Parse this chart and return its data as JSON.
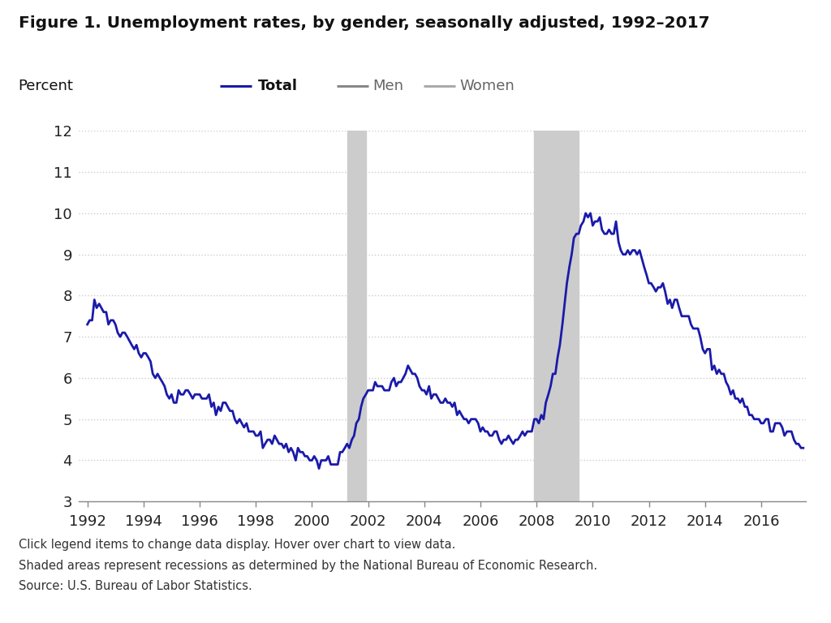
{
  "title": "Figure 1. Unemployment rates, by gender, seasonally adjusted, 1992–2017",
  "ylabel": "Percent",
  "legend_entries": [
    {
      "label": "Total",
      "color": "#1a1aaa",
      "lw": 2.0,
      "bold": true
    },
    {
      "label": "Men",
      "color": "#888888",
      "lw": 1.5,
      "bold": false
    },
    {
      "label": "Women",
      "color": "#aaaaaa",
      "lw": 1.5,
      "bold": false
    }
  ],
  "recession_bands": [
    {
      "start": 2001.25,
      "end": 2001.92
    },
    {
      "start": 2007.92,
      "end": 2009.5
    }
  ],
  "recession_color": "#cccccc",
  "ylim": [
    3,
    12
  ],
  "yticks": [
    3,
    4,
    5,
    6,
    7,
    8,
    9,
    10,
    11,
    12
  ],
  "xlim_start": 1991.7,
  "xlim_end": 2017.6,
  "xticks": [
    1992,
    1994,
    1996,
    1998,
    2000,
    2002,
    2004,
    2006,
    2008,
    2010,
    2012,
    2014,
    2016
  ],
  "footnote_lines": [
    "Click legend items to change data display. Hover over chart to view data.",
    "Shaded areas represent recessions as determined by the National Bureau of Economic Research.",
    "Source: U.S. Bureau of Labor Statistics."
  ],
  "background_color": "#ffffff",
  "grid_color": "#cccccc",
  "total_data": [
    [
      1992.0,
      7.3
    ],
    [
      1992.08,
      7.4
    ],
    [
      1992.17,
      7.4
    ],
    [
      1992.25,
      7.9
    ],
    [
      1992.33,
      7.7
    ],
    [
      1992.42,
      7.8
    ],
    [
      1992.5,
      7.7
    ],
    [
      1992.58,
      7.6
    ],
    [
      1992.67,
      7.6
    ],
    [
      1992.75,
      7.3
    ],
    [
      1992.83,
      7.4
    ],
    [
      1992.92,
      7.4
    ],
    [
      1993.0,
      7.3
    ],
    [
      1993.08,
      7.1
    ],
    [
      1993.17,
      7.0
    ],
    [
      1993.25,
      7.1
    ],
    [
      1993.33,
      7.1
    ],
    [
      1993.42,
      7.0
    ],
    [
      1993.5,
      6.9
    ],
    [
      1993.58,
      6.8
    ],
    [
      1993.67,
      6.7
    ],
    [
      1993.75,
      6.8
    ],
    [
      1993.83,
      6.6
    ],
    [
      1993.92,
      6.5
    ],
    [
      1994.0,
      6.6
    ],
    [
      1994.08,
      6.6
    ],
    [
      1994.17,
      6.5
    ],
    [
      1994.25,
      6.4
    ],
    [
      1994.33,
      6.1
    ],
    [
      1994.42,
      6.0
    ],
    [
      1994.5,
      6.1
    ],
    [
      1994.58,
      6.0
    ],
    [
      1994.67,
      5.9
    ],
    [
      1994.75,
      5.8
    ],
    [
      1994.83,
      5.6
    ],
    [
      1994.92,
      5.5
    ],
    [
      1995.0,
      5.6
    ],
    [
      1995.08,
      5.4
    ],
    [
      1995.17,
      5.4
    ],
    [
      1995.25,
      5.7
    ],
    [
      1995.33,
      5.6
    ],
    [
      1995.42,
      5.6
    ],
    [
      1995.5,
      5.7
    ],
    [
      1995.58,
      5.7
    ],
    [
      1995.67,
      5.6
    ],
    [
      1995.75,
      5.5
    ],
    [
      1995.83,
      5.6
    ],
    [
      1995.92,
      5.6
    ],
    [
      1996.0,
      5.6
    ],
    [
      1996.08,
      5.5
    ],
    [
      1996.17,
      5.5
    ],
    [
      1996.25,
      5.5
    ],
    [
      1996.33,
      5.6
    ],
    [
      1996.42,
      5.3
    ],
    [
      1996.5,
      5.4
    ],
    [
      1996.58,
      5.1
    ],
    [
      1996.67,
      5.3
    ],
    [
      1996.75,
      5.2
    ],
    [
      1996.83,
      5.4
    ],
    [
      1996.92,
      5.4
    ],
    [
      1997.0,
      5.3
    ],
    [
      1997.08,
      5.2
    ],
    [
      1997.17,
      5.2
    ],
    [
      1997.25,
      5.0
    ],
    [
      1997.33,
      4.9
    ],
    [
      1997.42,
      5.0
    ],
    [
      1997.5,
      4.9
    ],
    [
      1997.58,
      4.8
    ],
    [
      1997.67,
      4.9
    ],
    [
      1997.75,
      4.7
    ],
    [
      1997.83,
      4.7
    ],
    [
      1997.92,
      4.7
    ],
    [
      1998.0,
      4.6
    ],
    [
      1998.08,
      4.6
    ],
    [
      1998.17,
      4.7
    ],
    [
      1998.25,
      4.3
    ],
    [
      1998.33,
      4.4
    ],
    [
      1998.42,
      4.5
    ],
    [
      1998.5,
      4.5
    ],
    [
      1998.58,
      4.4
    ],
    [
      1998.67,
      4.6
    ],
    [
      1998.75,
      4.5
    ],
    [
      1998.83,
      4.4
    ],
    [
      1998.92,
      4.4
    ],
    [
      1999.0,
      4.3
    ],
    [
      1999.08,
      4.4
    ],
    [
      1999.17,
      4.2
    ],
    [
      1999.25,
      4.3
    ],
    [
      1999.33,
      4.2
    ],
    [
      1999.42,
      4.0
    ],
    [
      1999.5,
      4.3
    ],
    [
      1999.58,
      4.2
    ],
    [
      1999.67,
      4.2
    ],
    [
      1999.75,
      4.1
    ],
    [
      1999.83,
      4.1
    ],
    [
      1999.92,
      4.0
    ],
    [
      2000.0,
      4.0
    ],
    [
      2000.08,
      4.1
    ],
    [
      2000.17,
      4.0
    ],
    [
      2000.25,
      3.8
    ],
    [
      2000.33,
      4.0
    ],
    [
      2000.42,
      4.0
    ],
    [
      2000.5,
      4.0
    ],
    [
      2000.58,
      4.1
    ],
    [
      2000.67,
      3.9
    ],
    [
      2000.75,
      3.9
    ],
    [
      2000.83,
      3.9
    ],
    [
      2000.92,
      3.9
    ],
    [
      2001.0,
      4.2
    ],
    [
      2001.08,
      4.2
    ],
    [
      2001.17,
      4.3
    ],
    [
      2001.25,
      4.4
    ],
    [
      2001.33,
      4.3
    ],
    [
      2001.42,
      4.5
    ],
    [
      2001.5,
      4.6
    ],
    [
      2001.58,
      4.9
    ],
    [
      2001.67,
      5.0
    ],
    [
      2001.75,
      5.3
    ],
    [
      2001.83,
      5.5
    ],
    [
      2001.92,
      5.6
    ],
    [
      2002.0,
      5.7
    ],
    [
      2002.08,
      5.7
    ],
    [
      2002.17,
      5.7
    ],
    [
      2002.25,
      5.9
    ],
    [
      2002.33,
      5.8
    ],
    [
      2002.42,
      5.8
    ],
    [
      2002.5,
      5.8
    ],
    [
      2002.58,
      5.7
    ],
    [
      2002.67,
      5.7
    ],
    [
      2002.75,
      5.7
    ],
    [
      2002.83,
      5.9
    ],
    [
      2002.92,
      6.0
    ],
    [
      2003.0,
      5.8
    ],
    [
      2003.08,
      5.9
    ],
    [
      2003.17,
      5.9
    ],
    [
      2003.25,
      6.0
    ],
    [
      2003.33,
      6.1
    ],
    [
      2003.42,
      6.3
    ],
    [
      2003.5,
      6.2
    ],
    [
      2003.58,
      6.1
    ],
    [
      2003.67,
      6.1
    ],
    [
      2003.75,
      6.0
    ],
    [
      2003.83,
      5.8
    ],
    [
      2003.92,
      5.7
    ],
    [
      2004.0,
      5.7
    ],
    [
      2004.08,
      5.6
    ],
    [
      2004.17,
      5.8
    ],
    [
      2004.25,
      5.5
    ],
    [
      2004.33,
      5.6
    ],
    [
      2004.42,
      5.6
    ],
    [
      2004.5,
      5.5
    ],
    [
      2004.58,
      5.4
    ],
    [
      2004.67,
      5.4
    ],
    [
      2004.75,
      5.5
    ],
    [
      2004.83,
      5.4
    ],
    [
      2004.92,
      5.4
    ],
    [
      2005.0,
      5.3
    ],
    [
      2005.08,
      5.4
    ],
    [
      2005.17,
      5.1
    ],
    [
      2005.25,
      5.2
    ],
    [
      2005.33,
      5.1
    ],
    [
      2005.42,
      5.0
    ],
    [
      2005.5,
      5.0
    ],
    [
      2005.58,
      4.9
    ],
    [
      2005.67,
      5.0
    ],
    [
      2005.75,
      5.0
    ],
    [
      2005.83,
      5.0
    ],
    [
      2005.92,
      4.9
    ],
    [
      2006.0,
      4.7
    ],
    [
      2006.08,
      4.8
    ],
    [
      2006.17,
      4.7
    ],
    [
      2006.25,
      4.7
    ],
    [
      2006.33,
      4.6
    ],
    [
      2006.42,
      4.6
    ],
    [
      2006.5,
      4.7
    ],
    [
      2006.58,
      4.7
    ],
    [
      2006.67,
      4.5
    ],
    [
      2006.75,
      4.4
    ],
    [
      2006.83,
      4.5
    ],
    [
      2006.92,
      4.5
    ],
    [
      2007.0,
      4.6
    ],
    [
      2007.08,
      4.5
    ],
    [
      2007.17,
      4.4
    ],
    [
      2007.25,
      4.5
    ],
    [
      2007.33,
      4.5
    ],
    [
      2007.42,
      4.6
    ],
    [
      2007.5,
      4.7
    ],
    [
      2007.58,
      4.6
    ],
    [
      2007.67,
      4.7
    ],
    [
      2007.75,
      4.7
    ],
    [
      2007.83,
      4.7
    ],
    [
      2007.92,
      5.0
    ],
    [
      2008.0,
      5.0
    ],
    [
      2008.08,
      4.9
    ],
    [
      2008.17,
      5.1
    ],
    [
      2008.25,
      5.0
    ],
    [
      2008.33,
      5.4
    ],
    [
      2008.42,
      5.6
    ],
    [
      2008.5,
      5.8
    ],
    [
      2008.58,
      6.1
    ],
    [
      2008.67,
      6.1
    ],
    [
      2008.75,
      6.5
    ],
    [
      2008.83,
      6.8
    ],
    [
      2008.92,
      7.3
    ],
    [
      2009.0,
      7.8
    ],
    [
      2009.08,
      8.3
    ],
    [
      2009.17,
      8.7
    ],
    [
      2009.25,
      9.0
    ],
    [
      2009.33,
      9.4
    ],
    [
      2009.42,
      9.5
    ],
    [
      2009.5,
      9.5
    ],
    [
      2009.58,
      9.7
    ],
    [
      2009.67,
      9.8
    ],
    [
      2009.75,
      10.0
    ],
    [
      2009.83,
      9.9
    ],
    [
      2009.92,
      10.0
    ],
    [
      2010.0,
      9.7
    ],
    [
      2010.08,
      9.8
    ],
    [
      2010.17,
      9.8
    ],
    [
      2010.25,
      9.9
    ],
    [
      2010.33,
      9.6
    ],
    [
      2010.42,
      9.5
    ],
    [
      2010.5,
      9.5
    ],
    [
      2010.58,
      9.6
    ],
    [
      2010.67,
      9.5
    ],
    [
      2010.75,
      9.5
    ],
    [
      2010.83,
      9.8
    ],
    [
      2010.92,
      9.3
    ],
    [
      2011.0,
      9.1
    ],
    [
      2011.08,
      9.0
    ],
    [
      2011.17,
      9.0
    ],
    [
      2011.25,
      9.1
    ],
    [
      2011.33,
      9.0
    ],
    [
      2011.42,
      9.1
    ],
    [
      2011.5,
      9.1
    ],
    [
      2011.58,
      9.0
    ],
    [
      2011.67,
      9.1
    ],
    [
      2011.75,
      8.9
    ],
    [
      2011.83,
      8.7
    ],
    [
      2011.92,
      8.5
    ],
    [
      2012.0,
      8.3
    ],
    [
      2012.08,
      8.3
    ],
    [
      2012.17,
      8.2
    ],
    [
      2012.25,
      8.1
    ],
    [
      2012.33,
      8.2
    ],
    [
      2012.42,
      8.2
    ],
    [
      2012.5,
      8.3
    ],
    [
      2012.58,
      8.1
    ],
    [
      2012.67,
      7.8
    ],
    [
      2012.75,
      7.9
    ],
    [
      2012.83,
      7.7
    ],
    [
      2012.92,
      7.9
    ],
    [
      2013.0,
      7.9
    ],
    [
      2013.08,
      7.7
    ],
    [
      2013.17,
      7.5
    ],
    [
      2013.25,
      7.5
    ],
    [
      2013.33,
      7.5
    ],
    [
      2013.42,
      7.5
    ],
    [
      2013.5,
      7.3
    ],
    [
      2013.58,
      7.2
    ],
    [
      2013.67,
      7.2
    ],
    [
      2013.75,
      7.2
    ],
    [
      2013.83,
      7.0
    ],
    [
      2013.92,
      6.7
    ],
    [
      2014.0,
      6.6
    ],
    [
      2014.08,
      6.7
    ],
    [
      2014.17,
      6.7
    ],
    [
      2014.25,
      6.2
    ],
    [
      2014.33,
      6.3
    ],
    [
      2014.42,
      6.1
    ],
    [
      2014.5,
      6.2
    ],
    [
      2014.58,
      6.1
    ],
    [
      2014.67,
      6.1
    ],
    [
      2014.75,
      5.9
    ],
    [
      2014.83,
      5.8
    ],
    [
      2014.92,
      5.6
    ],
    [
      2015.0,
      5.7
    ],
    [
      2015.08,
      5.5
    ],
    [
      2015.17,
      5.5
    ],
    [
      2015.25,
      5.4
    ],
    [
      2015.33,
      5.5
    ],
    [
      2015.42,
      5.3
    ],
    [
      2015.5,
      5.3
    ],
    [
      2015.58,
      5.1
    ],
    [
      2015.67,
      5.1
    ],
    [
      2015.75,
      5.0
    ],
    [
      2015.83,
      5.0
    ],
    [
      2015.92,
      5.0
    ],
    [
      2016.0,
      4.9
    ],
    [
      2016.08,
      4.9
    ],
    [
      2016.17,
      5.0
    ],
    [
      2016.25,
      5.0
    ],
    [
      2016.33,
      4.7
    ],
    [
      2016.42,
      4.7
    ],
    [
      2016.5,
      4.9
    ],
    [
      2016.58,
      4.9
    ],
    [
      2016.67,
      4.9
    ],
    [
      2016.75,
      4.8
    ],
    [
      2016.83,
      4.6
    ],
    [
      2016.92,
      4.7
    ],
    [
      2017.0,
      4.7
    ],
    [
      2017.08,
      4.7
    ],
    [
      2017.17,
      4.5
    ],
    [
      2017.25,
      4.4
    ],
    [
      2017.33,
      4.4
    ],
    [
      2017.42,
      4.3
    ],
    [
      2017.5,
      4.3
    ]
  ]
}
